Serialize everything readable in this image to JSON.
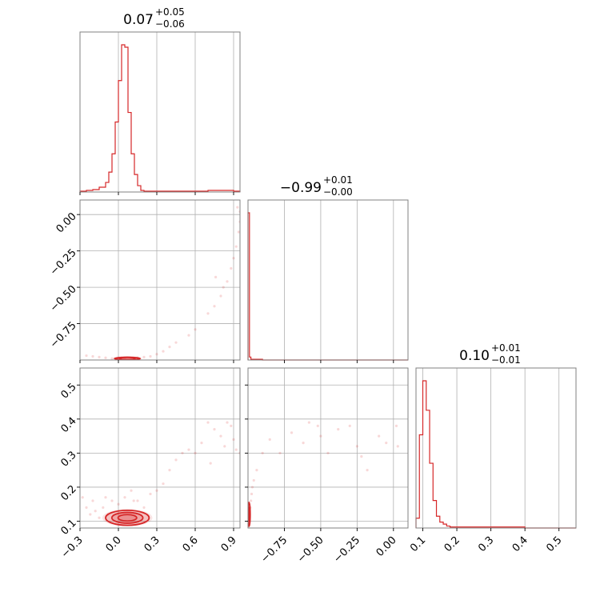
{
  "chart_data": {
    "type": "corner",
    "color": "#d62728",
    "grid": true,
    "parameters": [
      {
        "range": [
          -0.3,
          0.95
        ],
        "ticks": [
          -0.3,
          0.0,
          0.3,
          0.6,
          0.9
        ],
        "tick_labels": [
          "−0.3",
          "0.0",
          "0.3",
          "0.6",
          "0.9"
        ]
      },
      {
        "range": [
          -1.0,
          0.1
        ],
        "ticks": [
          -0.75,
          -0.5,
          -0.25,
          0.0
        ],
        "tick_labels": [
          "−0.75",
          "−0.50",
          "−0.25",
          "0.00"
        ]
      },
      {
        "range": [
          0.08,
          0.55
        ],
        "ticks": [
          0.1,
          0.2,
          0.3,
          0.4,
          0.5
        ],
        "tick_labels": [
          "0.1",
          "0.2",
          "0.3",
          "0.4",
          "0.5"
        ]
      }
    ],
    "titles": [
      {
        "value": "0.07",
        "plus": "+0.05",
        "minus": "−0.06"
      },
      {
        "value": "−0.99",
        "plus": "+0.01",
        "minus": "−0.00"
      },
      {
        "value": "0.10",
        "plus": "+0.01",
        "minus": "−0.01"
      }
    ],
    "histograms": [
      {
        "param": 0,
        "bin_edges": [
          -0.3,
          -0.25,
          -0.2,
          -0.15,
          -0.1,
          -0.075,
          -0.05,
          -0.025,
          0.0,
          0.025,
          0.05,
          0.075,
          0.1,
          0.125,
          0.15,
          0.175,
          0.2,
          0.3,
          0.4,
          0.5,
          0.6,
          0.7,
          0.8,
          0.9,
          0.95
        ],
        "counts": [
          1,
          2,
          3,
          6,
          12,
          25,
          48,
          88,
          140,
          185,
          182,
          100,
          48,
          22,
          8,
          2,
          1,
          1,
          1,
          1,
          1,
          2,
          2,
          1
        ]
      },
      {
        "param": 1,
        "bin_edges": [
          -1.0,
          -0.99,
          -0.98,
          -0.97,
          -0.9,
          -0.5,
          0.0,
          0.1
        ],
        "counts": [
          200,
          4,
          1,
          1,
          0,
          0,
          0
        ]
      },
      {
        "param": 2,
        "bin_edges": [
          0.08,
          0.09,
          0.1,
          0.11,
          0.12,
          0.13,
          0.14,
          0.15,
          0.16,
          0.17,
          0.18,
          0.2,
          0.25,
          0.3,
          0.35,
          0.4,
          0.45,
          0.5,
          0.55
        ],
        "counts": [
          10,
          95,
          150,
          120,
          66,
          28,
          12,
          6,
          4,
          2,
          1,
          1,
          1,
          1,
          1,
          0,
          0,
          0
        ]
      }
    ],
    "scatter_panels": [
      {
        "x_param": 0,
        "y_param": 1,
        "points": [
          [
            -0.25,
            -0.97
          ],
          [
            -0.2,
            -0.975
          ],
          [
            -0.15,
            -0.98
          ],
          [
            -0.1,
            -0.985
          ],
          [
            -0.05,
            -0.99
          ],
          [
            0.0,
            -0.99
          ],
          [
            0.05,
            -0.99
          ],
          [
            0.1,
            -0.99
          ],
          [
            0.15,
            -0.985
          ],
          [
            0.2,
            -0.98
          ],
          [
            0.25,
            -0.975
          ],
          [
            0.3,
            -0.96
          ],
          [
            0.35,
            -0.94
          ],
          [
            0.4,
            -0.91
          ],
          [
            0.45,
            -0.88
          ],
          [
            0.55,
            -0.83
          ],
          [
            0.6,
            -0.79
          ],
          [
            0.7,
            -0.68
          ],
          [
            0.75,
            -0.63
          ],
          [
            0.8,
            -0.56
          ],
          [
            0.85,
            -0.46
          ],
          [
            0.88,
            -0.37
          ],
          [
            0.9,
            -0.3
          ],
          [
            0.92,
            -0.22
          ],
          [
            0.94,
            -0.12
          ],
          [
            0.95,
            -0.05
          ],
          [
            0.95,
            0.02
          ],
          [
            0.93,
            0.05
          ],
          [
            0.76,
            -0.43
          ],
          [
            0.82,
            -0.5
          ]
        ],
        "contours": [
          {
            "center": [
              0.07,
              -0.99
            ],
            "half_width": [
              0.1,
              0.008
            ],
            "rings": 2
          }
        ]
      },
      {
        "x_param": 0,
        "y_param": 2,
        "points": [
          [
            -0.28,
            0.17
          ],
          [
            -0.25,
            0.14
          ],
          [
            -0.22,
            0.12
          ],
          [
            -0.2,
            0.16
          ],
          [
            -0.18,
            0.13
          ],
          [
            -0.15,
            0.11
          ],
          [
            -0.12,
            0.14
          ],
          [
            -0.1,
            0.17
          ],
          [
            -0.08,
            0.12
          ],
          [
            0.0,
            0.15
          ],
          [
            0.05,
            0.17
          ],
          [
            0.1,
            0.19
          ],
          [
            0.15,
            0.16
          ],
          [
            0.2,
            0.14
          ],
          [
            0.25,
            0.18
          ],
          [
            0.3,
            0.19
          ],
          [
            0.35,
            0.21
          ],
          [
            0.4,
            0.25
          ],
          [
            0.45,
            0.28
          ],
          [
            0.5,
            0.3
          ],
          [
            0.55,
            0.31
          ],
          [
            0.6,
            0.3
          ],
          [
            0.65,
            0.33
          ],
          [
            0.7,
            0.39
          ],
          [
            0.75,
            0.37
          ],
          [
            0.8,
            0.35
          ],
          [
            0.85,
            0.39
          ],
          [
            0.88,
            0.38
          ],
          [
            0.9,
            0.34
          ],
          [
            0.92,
            0.31
          ],
          [
            0.95,
            0.3
          ],
          [
            0.72,
            0.27
          ],
          [
            0.83,
            0.32
          ],
          [
            0.12,
            0.16
          ],
          [
            -0.05,
            0.16
          ]
        ],
        "contours": [
          {
            "center": [
              0.07,
              0.11
            ],
            "half_width": [
              0.17,
              0.022
            ],
            "rings": 3
          }
        ]
      },
      {
        "x_param": 1,
        "y_param": 2,
        "points": [
          [
            -0.99,
            0.1
          ],
          [
            -0.99,
            0.12
          ],
          [
            -0.985,
            0.14
          ],
          [
            -0.98,
            0.16
          ],
          [
            -0.975,
            0.18
          ],
          [
            -0.97,
            0.2
          ],
          [
            -0.96,
            0.22
          ],
          [
            -0.94,
            0.25
          ],
          [
            -0.9,
            0.3
          ],
          [
            -0.85,
            0.34
          ],
          [
            -0.78,
            0.3
          ],
          [
            -0.7,
            0.36
          ],
          [
            -0.62,
            0.33
          ],
          [
            -0.58,
            0.39
          ],
          [
            -0.52,
            0.38
          ],
          [
            -0.5,
            0.35
          ],
          [
            -0.45,
            0.3
          ],
          [
            -0.38,
            0.37
          ],
          [
            -0.3,
            0.38
          ],
          [
            -0.25,
            0.32
          ],
          [
            -0.22,
            0.29
          ],
          [
            -0.18,
            0.25
          ],
          [
            -0.1,
            0.35
          ],
          [
            -0.05,
            0.33
          ],
          [
            0.02,
            0.38
          ],
          [
            0.03,
            0.32
          ]
        ],
        "contours": [
          {
            "center": [
              -0.993,
              0.12
            ],
            "half_width": [
              0.008,
              0.035
            ],
            "rings": 2
          }
        ]
      }
    ]
  }
}
